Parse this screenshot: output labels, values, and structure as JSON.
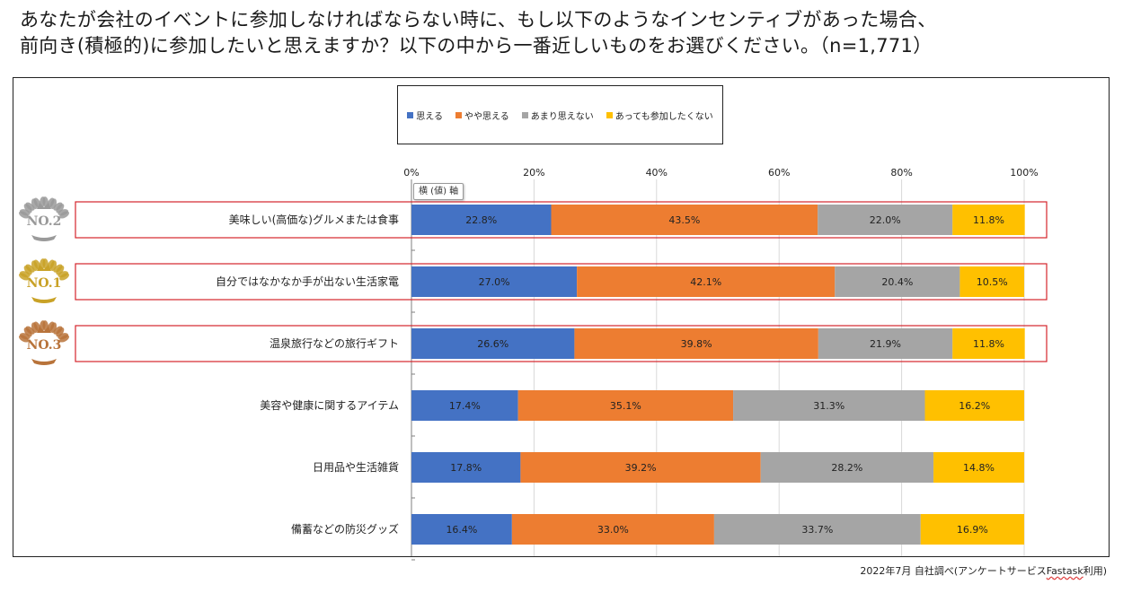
{
  "title": {
    "line1": "あなたが会社のイベントに参加しなければならない時に、もし以下のようなインセンティブがあった場合、",
    "line2": "前向き(積極的)に参加したいと思えますか？以下の中から一番近しいものをお選びください。（n=1,771）"
  },
  "axis_tooltip": "横 (値) 軸",
  "source": {
    "prefix": "2022年7月 自社調べ(アンケートサービス",
    "underlined": "Fastask",
    "suffix": "利用)"
  },
  "chart_data": {
    "type": "bar",
    "orientation": "horizontal",
    "stacked": "percent",
    "categories": [
      "美味しい(高価な)グルメまたは食事",
      "自分ではなかなか手が出ない生活家電",
      "温泉旅行などの旅行ギフト",
      "美容や健康に関するアイテム",
      "日用品や生活雑貨",
      "備蓄などの防災グッズ"
    ],
    "series": [
      {
        "name": "思える",
        "color": "#4472C4",
        "values": [
          22.8,
          27.0,
          26.6,
          17.4,
          17.8,
          16.4
        ]
      },
      {
        "name": "やや思える",
        "color": "#ED7D31",
        "values": [
          43.5,
          42.1,
          39.8,
          35.1,
          39.2,
          33.0
        ]
      },
      {
        "name": "あまり思えない",
        "color": "#A5A5A5",
        "values": [
          22.0,
          20.4,
          21.9,
          31.3,
          28.2,
          33.7
        ]
      },
      {
        "name": "あっても参加したくない",
        "color": "#FFC000",
        "values": [
          11.8,
          10.5,
          11.8,
          16.2,
          14.8,
          16.9
        ]
      }
    ],
    "data_label_suffix": "%",
    "x_ticks": [
      "0%",
      "20%",
      "40%",
      "60%",
      "80%",
      "100%"
    ],
    "xlim": [
      0,
      100
    ],
    "legend_position": "top",
    "highlighted_categories": [
      0,
      1,
      2
    ],
    "rank_badges": [
      {
        "category": 0,
        "label": "NO.2",
        "medal": "silver"
      },
      {
        "category": 1,
        "label": "NO.1",
        "medal": "gold"
      },
      {
        "category": 2,
        "label": "NO.3",
        "medal": "bronze"
      }
    ],
    "medal_colors": {
      "silver": "#9a9a9a",
      "gold": "#c9a227",
      "bronze": "#b8733a"
    }
  }
}
